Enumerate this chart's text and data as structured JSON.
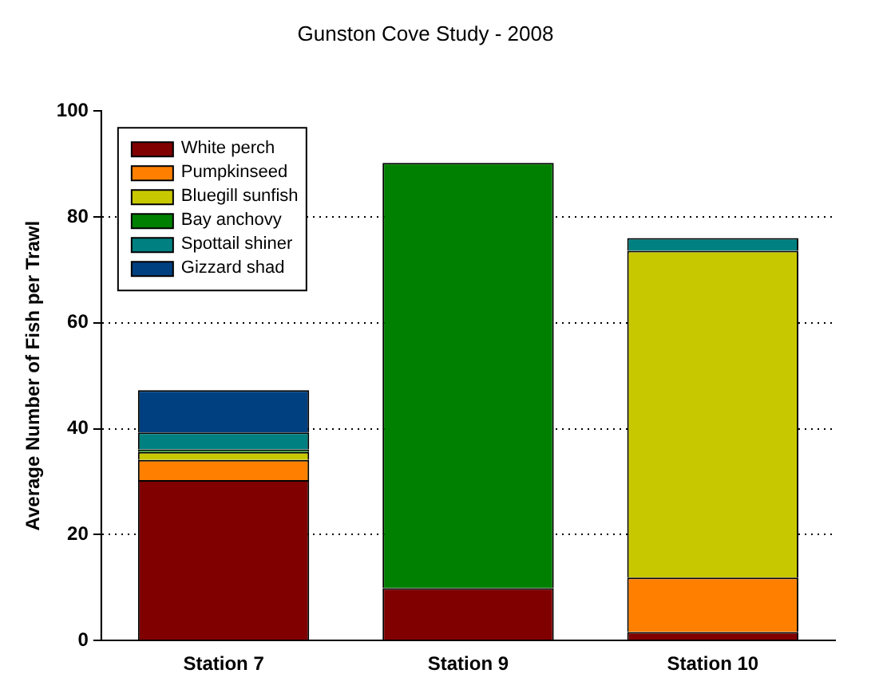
{
  "chart_data": {
    "type": "bar",
    "title": "Gunston Cove Study - 2008",
    "ylabel": "Average Number of Fish per Trawl",
    "categories": [
      "Station 7",
      "Station 9",
      "Station 10"
    ],
    "stacked": true,
    "ylim": [
      0,
      100
    ],
    "yticks": [
      0,
      20,
      40,
      60,
      80,
      100
    ],
    "grid": "y",
    "legend": "top left",
    "series": [
      {
        "name": "White perch",
        "color": "#800000",
        "values": [
          30.3,
          9.9,
          1.6
        ]
      },
      {
        "name": "Pumpkinseed",
        "color": "#ff8000",
        "values": [
          3.8,
          0,
          10.3
        ]
      },
      {
        "name": "Bluegill sunfish",
        "color": "#c8c800",
        "values": [
          1.5,
          0,
          61.7
        ]
      },
      {
        "name": "Bay anchovy",
        "color": "#008000",
        "values": [
          0.5,
          80.3,
          0
        ]
      },
      {
        "name": "Spottail shiner",
        "color": "#008080",
        "values": [
          3.2,
          0,
          2.4
        ]
      },
      {
        "name": "Gizzard shad",
        "color": "#004080",
        "values": [
          8.0,
          0,
          0
        ]
      }
    ]
  }
}
